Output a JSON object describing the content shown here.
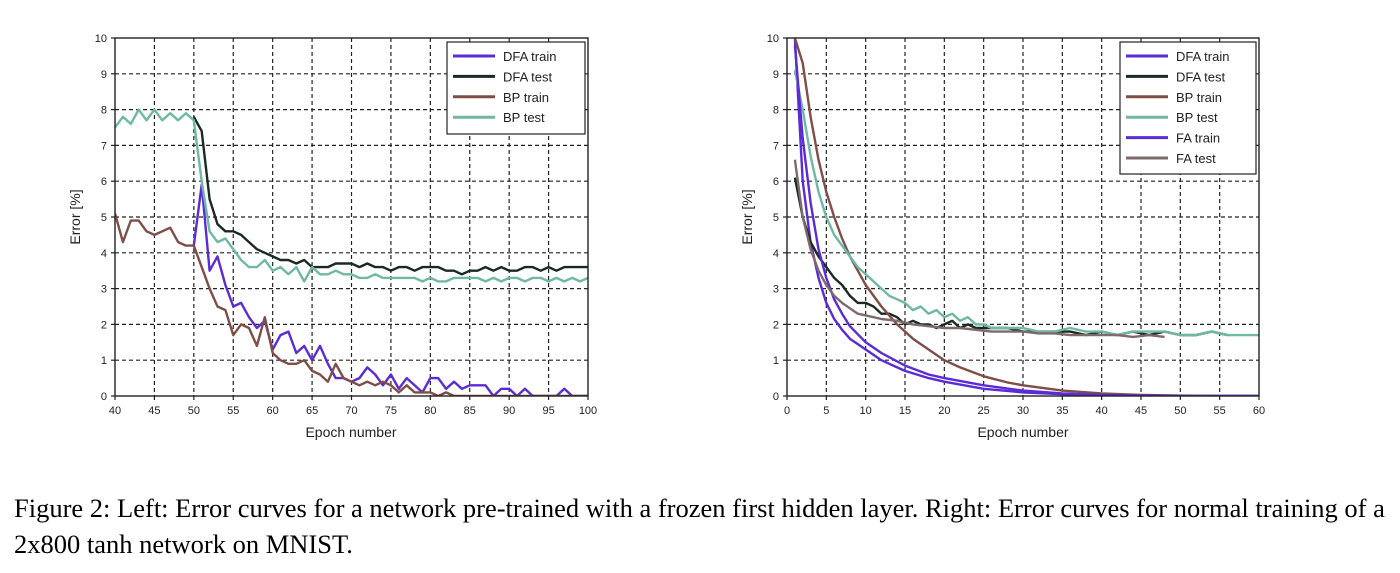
{
  "chart_data": [
    {
      "type": "line",
      "xlabel": "Epoch number",
      "ylabel": "Error [%]",
      "xlim": [
        40,
        100
      ],
      "ylim": [
        0,
        10
      ],
      "xticks": [
        40,
        45,
        50,
        55,
        60,
        65,
        70,
        75,
        80,
        85,
        90,
        95,
        100
      ],
      "yticks": [
        0,
        1,
        2,
        3,
        4,
        5,
        6,
        7,
        8,
        9,
        10
      ],
      "grid": true,
      "grid_style": "dashed",
      "legend_position": "top-right",
      "series": [
        {
          "name": "DFA train",
          "color": "#5b2bd6",
          "x": [
            50,
            51,
            52,
            53,
            54,
            55,
            56,
            57,
            58,
            59,
            60,
            61,
            62,
            63,
            64,
            65,
            66,
            67,
            68,
            69,
            70,
            71,
            72,
            73,
            74,
            75,
            76,
            77,
            78,
            79,
            80,
            81,
            82,
            83,
            84,
            85,
            86,
            87,
            88,
            89,
            90,
            91,
            92,
            93,
            94,
            95,
            96,
            97,
            98,
            99,
            100
          ],
          "y": [
            4.2,
            5.9,
            3.5,
            3.9,
            3.1,
            2.5,
            2.6,
            2.2,
            1.9,
            2.1,
            1.3,
            1.7,
            1.8,
            1.2,
            1.4,
            1.0,
            1.4,
            0.9,
            0.5,
            0.5,
            0.4,
            0.5,
            0.8,
            0.6,
            0.3,
            0.6,
            0.2,
            0.5,
            0.3,
            0.1,
            0.5,
            0.5,
            0.2,
            0.4,
            0.2,
            0.3,
            0.3,
            0.3,
            0.0,
            0.2,
            0.2,
            0.0,
            0.2,
            0.0,
            0.0,
            0.0,
            0.0,
            0.2,
            0.0,
            0.0,
            0.0
          ]
        },
        {
          "name": "DFA test",
          "color": "#1a2a22",
          "x": [
            50,
            51,
            52,
            53,
            54,
            55,
            56,
            57,
            58,
            59,
            60,
            61,
            62,
            63,
            64,
            65,
            66,
            67,
            68,
            69,
            70,
            71,
            72,
            73,
            74,
            75,
            76,
            77,
            78,
            79,
            80,
            81,
            82,
            83,
            84,
            85,
            86,
            87,
            88,
            89,
            90,
            91,
            92,
            93,
            94,
            95,
            96,
            97,
            98,
            99,
            100
          ],
          "y": [
            7.8,
            7.4,
            5.5,
            4.8,
            4.6,
            4.6,
            4.5,
            4.3,
            4.1,
            4.0,
            3.9,
            3.8,
            3.8,
            3.7,
            3.8,
            3.6,
            3.6,
            3.6,
            3.7,
            3.7,
            3.7,
            3.6,
            3.7,
            3.6,
            3.6,
            3.5,
            3.6,
            3.6,
            3.5,
            3.6,
            3.6,
            3.6,
            3.5,
            3.5,
            3.4,
            3.5,
            3.5,
            3.6,
            3.5,
            3.6,
            3.5,
            3.5,
            3.6,
            3.6,
            3.5,
            3.6,
            3.5,
            3.6,
            3.6,
            3.6,
            3.6
          ]
        },
        {
          "name": "BP train",
          "color": "#7e4e47",
          "x": [
            40,
            41,
            42,
            43,
            44,
            45,
            46,
            47,
            48,
            49,
            50,
            51,
            52,
            53,
            54,
            55,
            56,
            57,
            58,
            59,
            60,
            61,
            62,
            63,
            64,
            65,
            66,
            67,
            68,
            69,
            70,
            71,
            72,
            73,
            74,
            75,
            76,
            77,
            78,
            79,
            80,
            81,
            82,
            83,
            84,
            85,
            86,
            87,
            88,
            89,
            90,
            91,
            92,
            93,
            94,
            95,
            96,
            97,
            98,
            99,
            100
          ],
          "y": [
            5.1,
            4.3,
            4.9,
            4.9,
            4.6,
            4.5,
            4.6,
            4.7,
            4.3,
            4.2,
            4.2,
            3.6,
            3.0,
            2.5,
            2.4,
            1.7,
            2.0,
            1.9,
            1.4,
            2.2,
            1.2,
            1.0,
            0.9,
            0.9,
            1.0,
            0.7,
            0.6,
            0.4,
            0.9,
            0.5,
            0.4,
            0.3,
            0.4,
            0.3,
            0.4,
            0.3,
            0.1,
            0.3,
            0.1,
            0.1,
            0.1,
            0.0,
            0.1,
            0.0,
            0.0,
            0.0,
            0.0,
            0.0,
            0.0,
            0.0,
            0.0,
            0.0,
            0.0,
            0.0,
            0.0,
            0.0,
            0.0,
            0.0,
            0.0,
            0.0,
            0.0
          ]
        },
        {
          "name": "BP test",
          "color": "#6fb8a4",
          "x": [
            40,
            41,
            42,
            43,
            44,
            45,
            46,
            47,
            48,
            49,
            50,
            51,
            52,
            53,
            54,
            55,
            56,
            57,
            58,
            59,
            60,
            61,
            62,
            63,
            64,
            65,
            66,
            67,
            68,
            69,
            70,
            71,
            72,
            73,
            74,
            75,
            76,
            77,
            78,
            79,
            80,
            81,
            82,
            83,
            84,
            85,
            86,
            87,
            88,
            89,
            90,
            91,
            92,
            93,
            94,
            95,
            96,
            97,
            98,
            99,
            100
          ],
          "y": [
            7.5,
            7.8,
            7.6,
            8.0,
            7.7,
            8.0,
            7.7,
            7.9,
            7.7,
            7.9,
            7.7,
            6.0,
            4.6,
            4.3,
            4.4,
            4.1,
            3.8,
            3.6,
            3.6,
            3.8,
            3.5,
            3.6,
            3.4,
            3.6,
            3.2,
            3.6,
            3.4,
            3.4,
            3.5,
            3.4,
            3.4,
            3.3,
            3.3,
            3.4,
            3.3,
            3.3,
            3.3,
            3.3,
            3.3,
            3.2,
            3.3,
            3.2,
            3.2,
            3.3,
            3.3,
            3.3,
            3.3,
            3.2,
            3.3,
            3.2,
            3.3,
            3.3,
            3.2,
            3.3,
            3.3,
            3.2,
            3.3,
            3.2,
            3.3,
            3.2,
            3.3
          ]
        }
      ]
    },
    {
      "type": "line",
      "xlabel": "Epoch number",
      "ylabel": "Error [%]",
      "xlim": [
        0,
        60
      ],
      "ylim": [
        0,
        10
      ],
      "xticks": [
        0,
        5,
        10,
        15,
        20,
        25,
        30,
        35,
        40,
        45,
        50,
        55,
        60
      ],
      "yticks": [
        0,
        1,
        2,
        3,
        4,
        5,
        6,
        7,
        8,
        9,
        10
      ],
      "grid": true,
      "grid_style": "dashed",
      "legend_position": "top-right",
      "series": [
        {
          "name": "DFA train",
          "color": "#5b2bd6",
          "x": [
            1,
            2,
            3,
            4,
            5,
            6,
            7,
            8,
            10,
            12,
            15,
            18,
            20,
            25,
            30,
            35,
            40,
            45,
            50,
            55,
            60
          ],
          "y": [
            10.0,
            6.0,
            4.3,
            3.3,
            2.6,
            2.15,
            1.85,
            1.6,
            1.3,
            1.0,
            0.7,
            0.5,
            0.4,
            0.2,
            0.1,
            0.05,
            0.0,
            0.0,
            0.0,
            0.0,
            0.0
          ]
        },
        {
          "name": "DFA test",
          "color": "#1a2a22",
          "x": [
            1,
            2,
            3,
            4,
            5,
            6,
            7,
            8,
            9,
            10,
            11,
            12,
            13,
            14,
            15,
            16,
            17,
            18,
            19,
            20,
            21,
            22,
            23,
            24,
            25,
            26,
            28,
            30,
            32,
            34,
            36,
            38,
            40,
            42,
            44,
            46,
            48,
            50,
            52,
            54,
            56
          ],
          "y": [
            6.1,
            5.0,
            4.3,
            3.9,
            3.6,
            3.3,
            3.1,
            2.8,
            2.6,
            2.6,
            2.5,
            2.3,
            2.3,
            2.2,
            2.0,
            2.1,
            2.0,
            2.0,
            1.9,
            2.0,
            2.1,
            1.9,
            2.0,
            1.9,
            1.9,
            1.9,
            1.9,
            1.8,
            1.8,
            1.8,
            1.8,
            1.7,
            1.8,
            1.7,
            1.8,
            1.7,
            1.8,
            1.7,
            1.7,
            1.8,
            1.7
          ]
        },
        {
          "name": "BP train",
          "color": "#7e4e47",
          "x": [
            1,
            2,
            3,
            4,
            5,
            6,
            7,
            8,
            9,
            10,
            12,
            14,
            16,
            18,
            20,
            22,
            25,
            28,
            30,
            35,
            40,
            45,
            50,
            55,
            60
          ],
          "y": [
            10.0,
            9.3,
            7.8,
            6.6,
            5.7,
            5.0,
            4.4,
            3.9,
            3.5,
            3.1,
            2.5,
            2.0,
            1.6,
            1.3,
            1.0,
            0.8,
            0.55,
            0.38,
            0.3,
            0.15,
            0.07,
            0.03,
            0.01,
            0.0,
            0.0
          ]
        },
        {
          "name": "BP test",
          "color": "#6fb8a4",
          "x": [
            1,
            2,
            3,
            4,
            5,
            6,
            7,
            8,
            9,
            10,
            11,
            12,
            13,
            14,
            15,
            16,
            17,
            18,
            19,
            20,
            21,
            22,
            23,
            24,
            25,
            26,
            28,
            30,
            32,
            34,
            36,
            38,
            40,
            42,
            44,
            46,
            48,
            50,
            52,
            54,
            56,
            58,
            60
          ],
          "y": [
            9.1,
            8.0,
            6.7,
            5.7,
            5.0,
            4.5,
            4.2,
            3.9,
            3.6,
            3.4,
            3.2,
            3.0,
            2.8,
            2.7,
            2.6,
            2.4,
            2.5,
            2.3,
            2.4,
            2.2,
            2.3,
            2.1,
            2.2,
            2.0,
            2.0,
            1.9,
            1.9,
            1.9,
            1.8,
            1.8,
            1.9,
            1.8,
            1.8,
            1.7,
            1.8,
            1.8,
            1.8,
            1.7,
            1.7,
            1.8,
            1.7,
            1.7,
            1.7
          ]
        },
        {
          "name": "FA train",
          "color": "#5b2bd6",
          "x": [
            1,
            2,
            3,
            4,
            5,
            6,
            7,
            8,
            10,
            12,
            15,
            18,
            20,
            25,
            30,
            35,
            40,
            45,
            50,
            55,
            60
          ],
          "y": [
            9.8,
            7.2,
            5.4,
            4.1,
            3.3,
            2.7,
            2.3,
            1.95,
            1.5,
            1.2,
            0.85,
            0.6,
            0.5,
            0.3,
            0.15,
            0.07,
            0.03,
            0.01,
            0.0,
            0.0,
            0.0
          ]
        },
        {
          "name": "FA test",
          "color": "#7d6b6b",
          "x": [
            1,
            2,
            3,
            4,
            5,
            6,
            7,
            8,
            9,
            10,
            11,
            12,
            14,
            16,
            18,
            20,
            22,
            24,
            26,
            28,
            30,
            32,
            34,
            36,
            38,
            40,
            42,
            44,
            46,
            48
          ],
          "y": [
            6.6,
            5.0,
            4.1,
            3.5,
            3.1,
            2.8,
            2.6,
            2.45,
            2.3,
            2.25,
            2.2,
            2.15,
            2.1,
            2.0,
            1.95,
            1.9,
            1.9,
            1.85,
            1.8,
            1.8,
            1.8,
            1.75,
            1.75,
            1.7,
            1.7,
            1.7,
            1.7,
            1.65,
            1.7,
            1.65
          ]
        }
      ]
    }
  ],
  "caption": "Figure 2: Left: Error curves for a network pre-trained with a frozen first hidden layer. Right: Error curves for normal training of a 2x800 tanh network on MNIST."
}
